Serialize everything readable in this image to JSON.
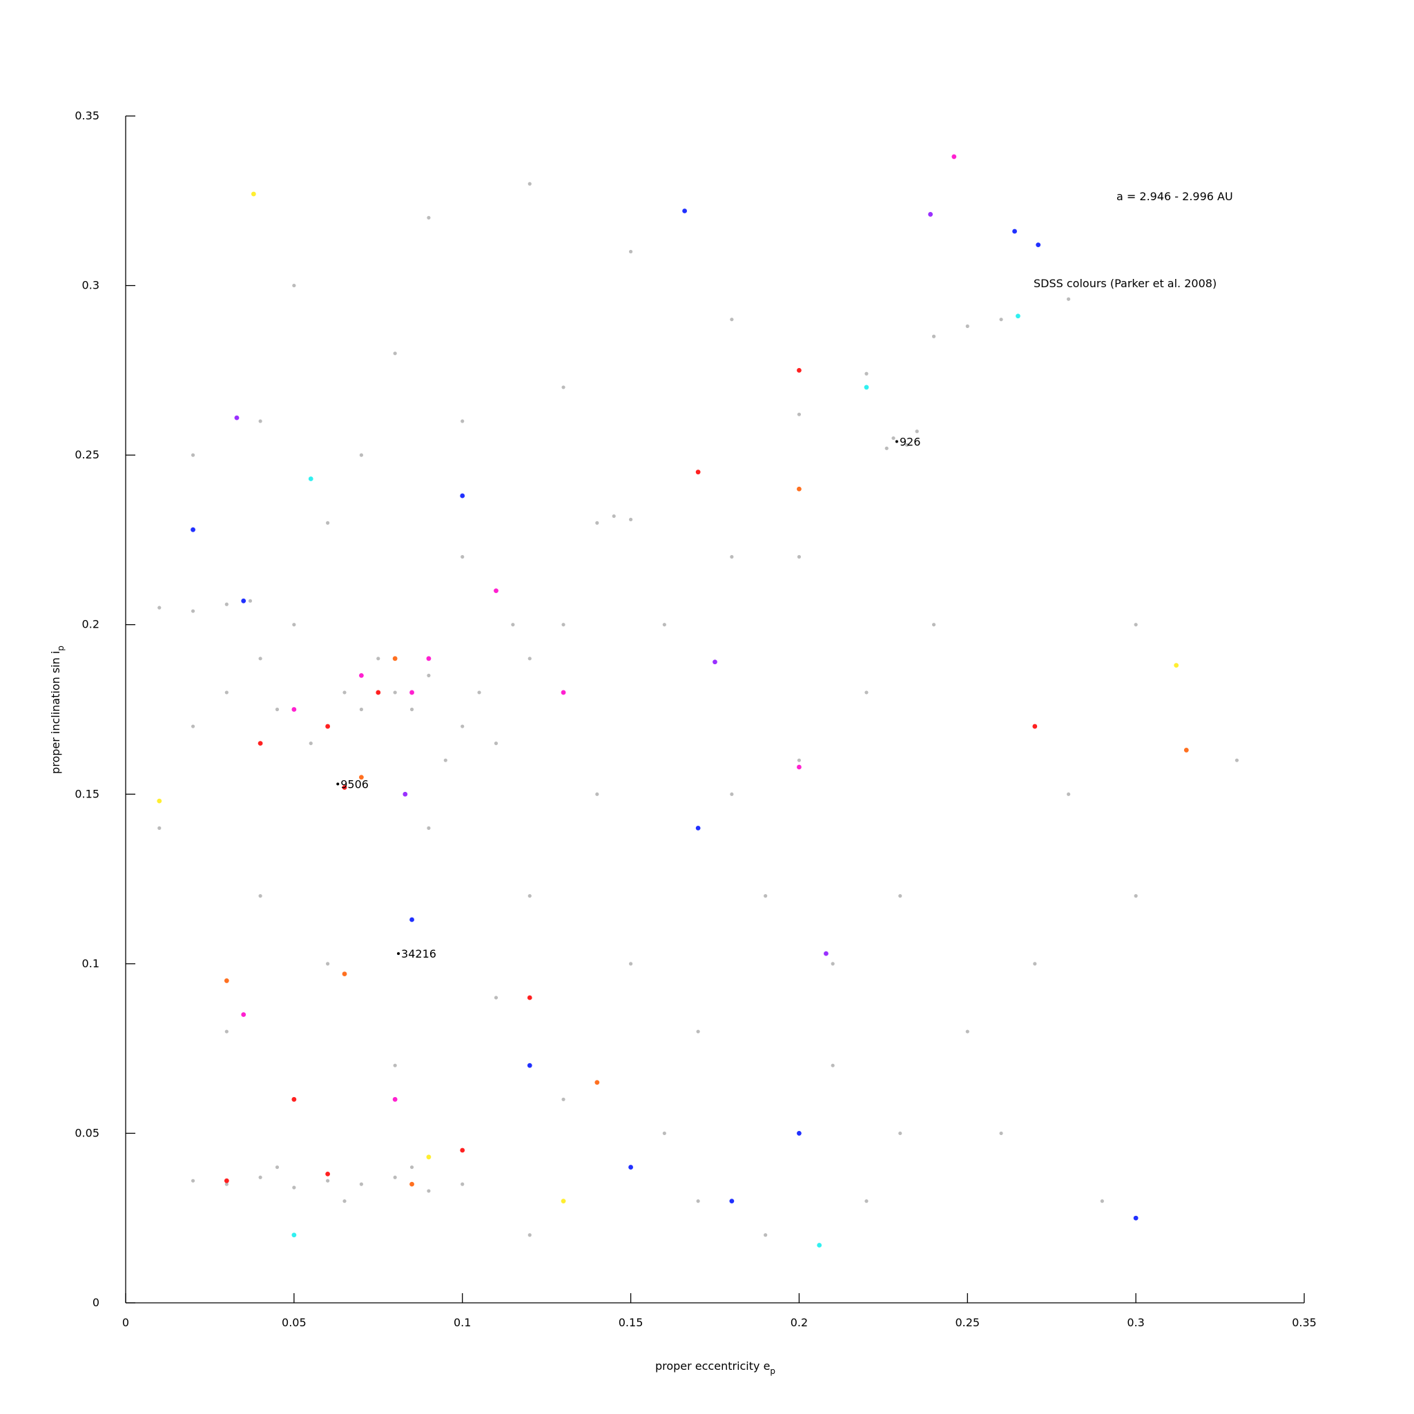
{
  "chart_data": {
    "type": "scatter",
    "title": "a = 2.946 - 2.996 AU",
    "subtitle": "SDSS colours (Parker et al. 2008)",
    "xlabel": {
      "text": "proper eccentricity e",
      "sub": "p"
    },
    "ylabel": {
      "text": "proper inclination sin i",
      "sub": "p"
    },
    "xlim": [
      0,
      0.35
    ],
    "ylim": [
      0,
      0.35
    ],
    "xticks": [
      0,
      0.05,
      0.1,
      0.15,
      0.2,
      0.25,
      0.3,
      0.35
    ],
    "yticks": [
      0,
      0.05,
      0.1,
      0.15,
      0.2,
      0.25,
      0.3,
      0.35
    ],
    "grid": false,
    "annotations": [
      {
        "text": "926",
        "x": 0.229,
        "y": 0.254
      },
      {
        "text": "9506",
        "x": 0.063,
        "y": 0.153
      },
      {
        "text": "34216",
        "x": 0.081,
        "y": 0.103
      }
    ],
    "series": [
      {
        "color": "#bbbbbb",
        "x": [
          0.06,
          0.07,
          0.08,
          0.09,
          0.1,
          0.055,
          0.065,
          0.075,
          0.085,
          0.095,
          0.045,
          0.105,
          0.11,
          0.04,
          0.05,
          0.03,
          0.02,
          0.12,
          0.115,
          0.13,
          0.01,
          0.02,
          0.03,
          0.037,
          0.02,
          0.03,
          0.04,
          0.05,
          0.06,
          0.07,
          0.08,
          0.09,
          0.1,
          0.045,
          0.065,
          0.085,
          0.228,
          0.232,
          0.235,
          0.226,
          0.2,
          0.22,
          0.24,
          0.26,
          0.28,
          0.25,
          0.14,
          0.145,
          0.15,
          0.15,
          0.17,
          0.19,
          0.13,
          0.16,
          0.21,
          0.18,
          0.2,
          0.22,
          0.24,
          0.12,
          0.11,
          0.14,
          0.16,
          0.18,
          0.13,
          0.1,
          0.07,
          0.04,
          0.05,
          0.09,
          0.12,
          0.15,
          0.18,
          0.2,
          0.23,
          0.25,
          0.26,
          0.27,
          0.28,
          0.3,
          0.29,
          0.22,
          0.19,
          0.17,
          0.12,
          0.08,
          0.06,
          0.04,
          0.03,
          0.01,
          0.02,
          0.08,
          0.1,
          0.06,
          0.09,
          0.21,
          0.23,
          0.3,
          0.33
        ],
        "y": [
          0.17,
          0.175,
          0.18,
          0.185,
          0.17,
          0.165,
          0.18,
          0.19,
          0.175,
          0.16,
          0.175,
          0.18,
          0.165,
          0.19,
          0.2,
          0.18,
          0.17,
          0.19,
          0.2,
          0.2,
          0.205,
          0.204,
          0.206,
          0.207,
          0.036,
          0.035,
          0.037,
          0.034,
          0.036,
          0.035,
          0.037,
          0.033,
          0.035,
          0.04,
          0.03,
          0.04,
          0.255,
          0.253,
          0.257,
          0.252,
          0.262,
          0.274,
          0.285,
          0.29,
          0.296,
          0.288,
          0.23,
          0.232,
          0.231,
          0.1,
          0.08,
          0.12,
          0.06,
          0.05,
          0.07,
          0.15,
          0.16,
          0.18,
          0.2,
          0.12,
          0.09,
          0.15,
          0.2,
          0.22,
          0.27,
          0.26,
          0.25,
          0.26,
          0.3,
          0.32,
          0.33,
          0.31,
          0.29,
          0.22,
          0.12,
          0.08,
          0.05,
          0.1,
          0.15,
          0.12,
          0.03,
          0.03,
          0.02,
          0.03,
          0.02,
          0.07,
          0.1,
          0.12,
          0.08,
          0.14,
          0.25,
          0.28,
          0.22,
          0.23,
          0.14,
          0.1,
          0.05,
          0.2,
          0.16
        ]
      },
      {
        "color": "#ff2020",
        "x": [
          0.04,
          0.06,
          0.075,
          0.065,
          0.03,
          0.06,
          0.1,
          0.17,
          0.27,
          0.2,
          0.12,
          0.05
        ],
        "y": [
          0.165,
          0.17,
          0.18,
          0.152,
          0.036,
          0.038,
          0.045,
          0.245,
          0.17,
          0.275,
          0.09,
          0.06
        ]
      },
      {
        "color": "#ff20d0",
        "x": [
          0.05,
          0.07,
          0.085,
          0.09,
          0.246,
          0.11,
          0.13,
          0.08,
          0.2,
          0.035
        ],
        "y": [
          0.175,
          0.185,
          0.18,
          0.19,
          0.338,
          0.21,
          0.18,
          0.06,
          0.158,
          0.085
        ]
      },
      {
        "color": "#2030ff",
        "x": [
          0.166,
          0.264,
          0.271,
          0.15,
          0.18,
          0.2,
          0.085,
          0.1,
          0.02,
          0.035,
          0.3,
          0.17,
          0.12
        ],
        "y": [
          0.322,
          0.316,
          0.312,
          0.04,
          0.03,
          0.05,
          0.113,
          0.238,
          0.228,
          0.207,
          0.025,
          0.14,
          0.07
        ]
      },
      {
        "color": "#ff7020",
        "x": [
          0.07,
          0.085,
          0.065,
          0.2,
          0.03,
          0.08,
          0.315,
          0.14
        ],
        "y": [
          0.155,
          0.035,
          0.097,
          0.24,
          0.095,
          0.19,
          0.163,
          0.065
        ]
      },
      {
        "color": "#ffee30",
        "x": [
          0.038,
          0.09,
          0.312,
          0.01,
          0.13
        ],
        "y": [
          0.327,
          0.043,
          0.188,
          0.148,
          0.03
        ]
      },
      {
        "color": "#30f0f0",
        "x": [
          0.055,
          0.265,
          0.206,
          0.22,
          0.05
        ],
        "y": [
          0.243,
          0.291,
          0.017,
          0.27,
          0.02
        ]
      },
      {
        "color": "#9a30ff",
        "x": [
          0.083,
          0.239,
          0.175,
          0.208,
          0.033
        ],
        "y": [
          0.15,
          0.321,
          0.189,
          0.103,
          0.261
        ]
      }
    ]
  }
}
